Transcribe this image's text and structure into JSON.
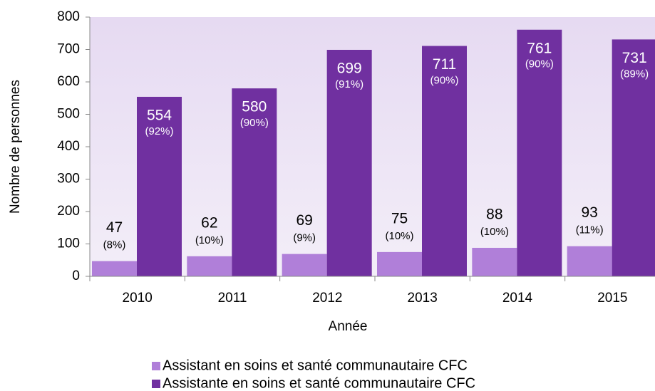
{
  "chart_data": {
    "type": "bar",
    "categories": [
      "2010",
      "2011",
      "2012",
      "2013",
      "2014",
      "2015"
    ],
    "series": [
      {
        "name": "Assistant en soins et santé communautaire CFC",
        "color": "#b07fd9",
        "values": [
          47,
          62,
          69,
          75,
          88,
          93
        ],
        "percent_labels": [
          "(8%)",
          "(10%)",
          "(9%)",
          "(10%)",
          "(10%)",
          "(11%)"
        ]
      },
      {
        "name": "Assistante en soins et santé communautaire CFC",
        "color": "#7030a0",
        "values": [
          554,
          580,
          699,
          711,
          761,
          731
        ],
        "percent_labels": [
          "(92%)",
          "(90%)",
          "(91%)",
          "(90%)",
          "(90%)",
          "(89%)"
        ]
      }
    ],
    "x_label": "Année",
    "y_label": "Nombre de personnes",
    "ylim": [
      0,
      800
    ],
    "yticks": [
      0,
      100,
      200,
      300,
      400,
      500,
      600,
      700,
      800
    ]
  }
}
